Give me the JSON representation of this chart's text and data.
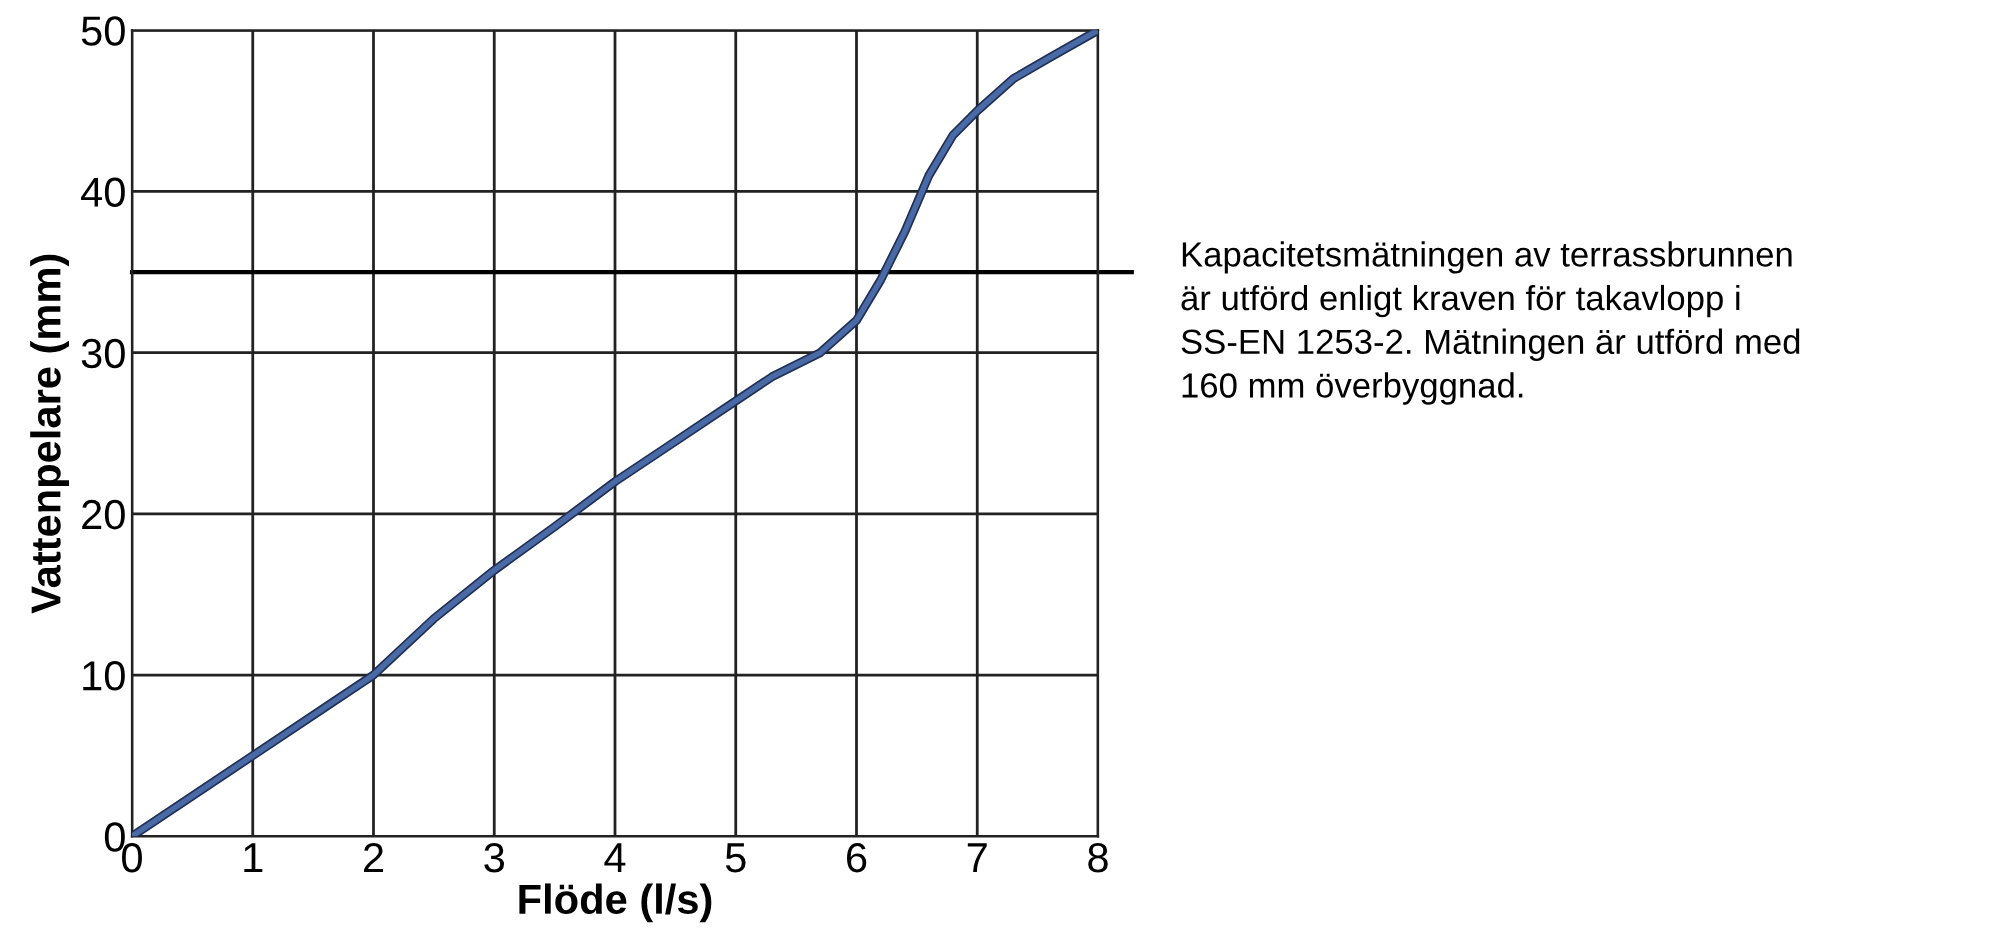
{
  "chart_data": {
    "type": "line",
    "xlabel": "Flöde (l/s)",
    "ylabel": "Vattenpelare (mm)",
    "x": [
      0,
      1,
      1.6,
      2,
      2.5,
      3,
      3.5,
      4,
      4.5,
      5,
      5.3,
      5.7,
      6,
      6.2,
      6.4,
      6.6,
      6.8,
      7,
      7.3,
      7.6,
      8
    ],
    "series": [
      {
        "color": "#4a6aa5",
        "values": [
          0,
          5,
          8,
          10,
          13.5,
          16.5,
          19.2,
          22,
          24.5,
          27,
          28.5,
          30,
          32,
          34.5,
          37.5,
          41,
          43.5,
          45,
          47,
          48.3,
          50
        ]
      }
    ],
    "xlim": [
      0,
      8
    ],
    "ylim": [
      0,
      50
    ],
    "xticks": [
      0,
      1,
      2,
      3,
      4,
      5,
      6,
      7,
      8
    ],
    "yticks": [
      0,
      10,
      20,
      30,
      40,
      50
    ],
    "grid": true,
    "legend": false,
    "marker": "none",
    "line_style": "solid",
    "ref_lines": [
      {
        "axis": "y",
        "value": 35,
        "color": "#000000"
      }
    ],
    "annotations": [
      "Kapacitetsmätningen av terrassbrunnen\när utförd enligt kraven för takavlopp i\nSS-EN 1253-2. Mätningen är utförd med\n160 mm överbyggnad."
    ]
  }
}
